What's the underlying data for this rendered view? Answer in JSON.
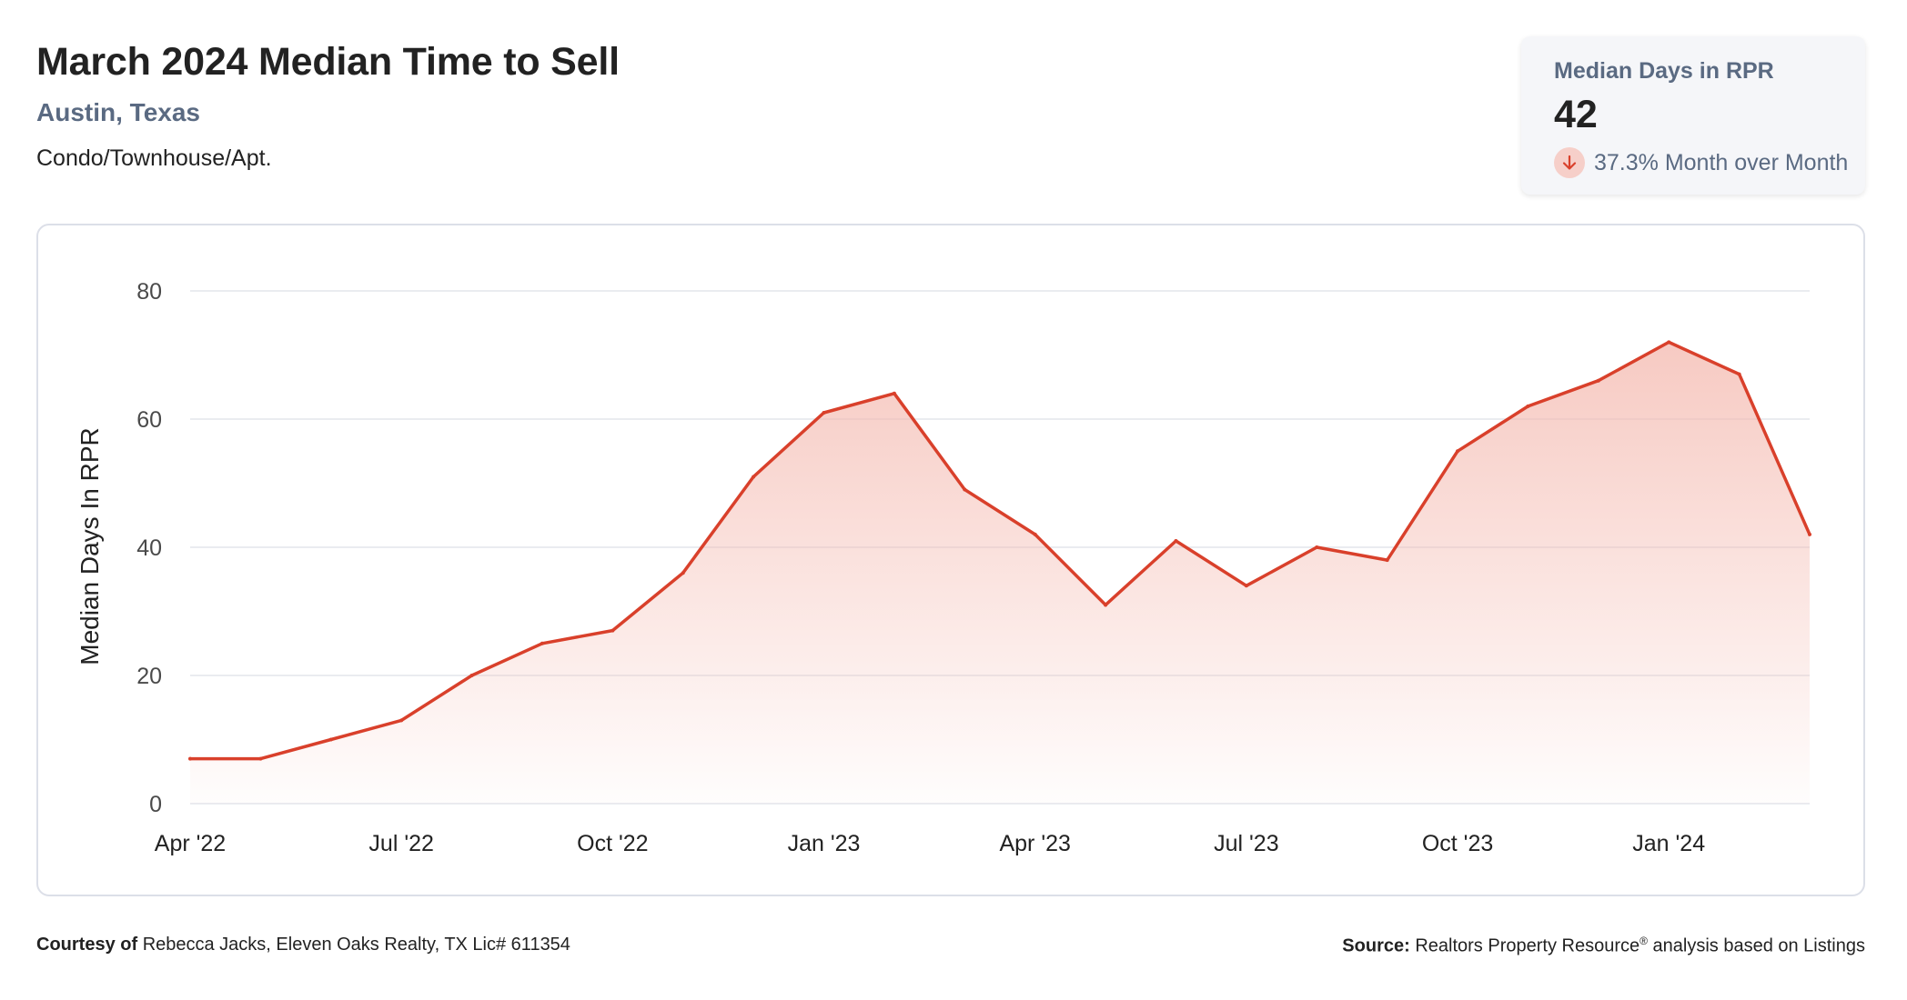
{
  "header": {
    "title": "March 2024 Median Time to Sell",
    "location": "Austin, Texas",
    "property_type": "Condo/Townhouse/Apt."
  },
  "stat_card": {
    "label": "Median Days in RPR",
    "value": "42",
    "change_text": "37.3% Month over Month",
    "change_direction": "down",
    "icon": "arrow-down-icon"
  },
  "chart_data": {
    "type": "area",
    "ylabel": "Median Days In RPR",
    "ylim": [
      0,
      80
    ],
    "yticks": [
      0,
      20,
      40,
      60,
      80
    ],
    "x_tick_labels": [
      "Apr '22",
      "Jul '22",
      "Oct '22",
      "Jan '23",
      "Apr '23",
      "Jul '23",
      "Oct '23",
      "Jan '24"
    ],
    "x": [
      "2022-04",
      "2022-05",
      "2022-06",
      "2022-07",
      "2022-08",
      "2022-09",
      "2022-10",
      "2022-11",
      "2022-12",
      "2023-01",
      "2023-02",
      "2023-03",
      "2023-04",
      "2023-05",
      "2023-06",
      "2023-07",
      "2023-08",
      "2023-09",
      "2023-10",
      "2023-11",
      "2023-12",
      "2024-01",
      "2024-02",
      "2024-03"
    ],
    "values": [
      7,
      7,
      10,
      13,
      20,
      25,
      27,
      36,
      51,
      61,
      64,
      49,
      42,
      31,
      41,
      34,
      40,
      38,
      55,
      62,
      66,
      72,
      67,
      42
    ],
    "grid": true,
    "colors": {
      "line": "#d9402b",
      "fill": "#f4b8ae"
    }
  },
  "footer": {
    "courtesy_label": "Courtesy of",
    "courtesy_text": "Rebecca Jacks, Eleven Oaks Realty, TX Lic# 611354",
    "source_label": "Source:",
    "source_text": "Realtors Property Resource",
    "source_sup": "®",
    "source_tail": "analysis based on Listings"
  }
}
